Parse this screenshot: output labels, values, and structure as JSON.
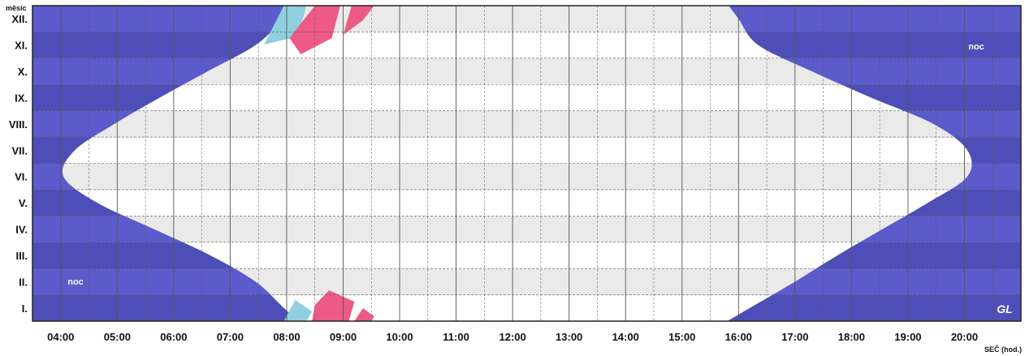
{
  "chart_data": {
    "type": "area",
    "title": "",
    "ylabel": "měsíc",
    "xlabel": "SEČ (hod.)",
    "x_ticks": [
      "04:00",
      "05:00",
      "06:00",
      "07:00",
      "08:00",
      "09:00",
      "10:00",
      "11:00",
      "12:00",
      "13:00",
      "14:00",
      "15:00",
      "16:00",
      "17:00",
      "18:00",
      "19:00",
      "20:00"
    ],
    "xlim": [
      3.5,
      21.0
    ],
    "months": [
      "I.",
      "II.",
      "III.",
      "IV.",
      "V.",
      "VI.",
      "VII.",
      "VIII.",
      "IX.",
      "X.",
      "XI.",
      "XII."
    ],
    "series": [
      {
        "name": "",
        "description_values": "sunrise/sunset by month (hours, SEČ)",
        "month_index": [
          0,
          1,
          2,
          3,
          4,
          5,
          6,
          7,
          8,
          9,
          10,
          11
        ],
        "sunrise": [
          7.95,
          7.45,
          6.65,
          5.65,
          4.65,
          4.05,
          4.25,
          4.95,
          5.75,
          6.6,
          7.45,
          7.95
        ],
        "sunset": [
          16.2,
          17.0,
          17.75,
          18.55,
          19.35,
          20.05,
          20.05,
          19.45,
          18.35,
          17.3,
          16.35,
          16.0
        ]
      }
    ],
    "labels": {
      "night_top": "noc",
      "night_bottom": "noc"
    },
    "colors": {
      "night": "#5b5bcc",
      "night_dark": "#4e4eb8",
      "day": "#ffffff",
      "band": "#eaeaea",
      "pink": "#ee5a86",
      "lightblue": "#8fcfe0",
      "grid": "#555555"
    },
    "grid": true,
    "logo_text": "GL"
  }
}
